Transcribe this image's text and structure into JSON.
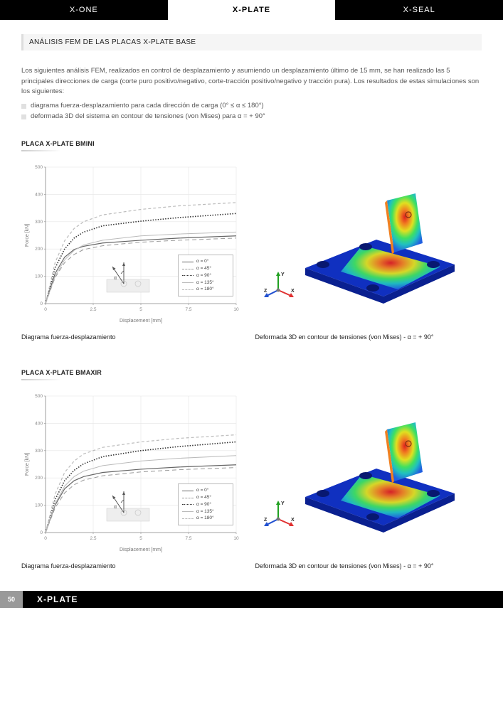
{
  "tabs": {
    "left": "X-ONE",
    "center": "X-PLATE",
    "right": "X-SEAL"
  },
  "section_title": "ANÁLISIS FEM DE LAS PLACAS X-PLATE BASE",
  "intro_p1": "Los siguientes análisis FEM, realizados en control de desplazamiento y asumiendo un desplazamiento último de 15 mm, se han realizado las 5 principales direcciones de carga (corte puro positivo/negativo, corte-tracción positivo/negativo y tracción pura). Los resultados de estas simulaciones son los siguientes:",
  "bullet1": "diagrama fuerza-desplazamiento para cada dirección de carga (0° ≤ α ≤ 180°)",
  "bullet2": "deformada 3D del sistema en contour de tensiones (von Mises) para α = + 90°",
  "block1": {
    "title": "PLACA X-PLATE BMINI",
    "chart": {
      "ylabel": "Force [kN]",
      "xlabel": "Displacement [mm]",
      "xticks": [
        0,
        2.5,
        5,
        7.5,
        10
      ],
      "yticks": [
        0,
        100,
        200,
        300,
        400,
        500
      ],
      "xlim": [
        0,
        10
      ],
      "ylim": [
        0,
        500
      ],
      "grid_color": "#e5e5e5",
      "series": [
        {
          "label": "α = 0°",
          "dash": "solid",
          "color": "#666",
          "width": 1.2,
          "points": [
            [
              0,
              0
            ],
            [
              0.5,
              110
            ],
            [
              1,
              170
            ],
            [
              1.5,
              198
            ],
            [
              2,
              210
            ],
            [
              3,
              222
            ],
            [
              5,
              232
            ],
            [
              7,
              240
            ],
            [
              10,
              248
            ]
          ]
        },
        {
          "label": "α = 45°",
          "dash": "long-dash",
          "color": "#999",
          "width": 1.0,
          "points": [
            [
              0,
              0
            ],
            [
              0.5,
              95
            ],
            [
              1,
              150
            ],
            [
              1.5,
              180
            ],
            [
              2,
              198
            ],
            [
              3,
              212
            ],
            [
              5,
              225
            ],
            [
              7,
              232
            ],
            [
              10,
              240
            ]
          ]
        },
        {
          "label": "α = 90°",
          "dash": "dotted",
          "color": "#333",
          "width": 1.6,
          "points": [
            [
              0,
              0
            ],
            [
              0.5,
              130
            ],
            [
              1,
              200
            ],
            [
              1.5,
              240
            ],
            [
              2,
              262
            ],
            [
              3,
              285
            ],
            [
              5,
              302
            ],
            [
              7,
              315
            ],
            [
              10,
              330
            ]
          ]
        },
        {
          "label": "α = 135°",
          "dash": "solid",
          "color": "#bbb",
          "width": 1.0,
          "points": [
            [
              0,
              0
            ],
            [
              0.5,
              100
            ],
            [
              1,
              160
            ],
            [
              1.5,
              195
            ],
            [
              2,
              215
            ],
            [
              3,
              232
            ],
            [
              5,
              248
            ],
            [
              7,
              255
            ],
            [
              10,
              262
            ]
          ]
        },
        {
          "label": "α = 180°",
          "dash": "short-dash",
          "color": "#bbb",
          "width": 1.2,
          "points": [
            [
              0,
              0
            ],
            [
              0.5,
              150
            ],
            [
              1,
              230
            ],
            [
              1.5,
              275
            ],
            [
              2,
              300
            ],
            [
              3,
              325
            ],
            [
              5,
              345
            ],
            [
              7,
              358
            ],
            [
              10,
              370
            ]
          ]
        }
      ],
      "inset_alpha": "α"
    },
    "caption_left": "Diagrama fuerza-desplazamiento",
    "caption_right": "Deformada 3D en contour de tensiones (von Mises) - α = + 90°",
    "axis3d": {
      "x": "X",
      "y": "Y",
      "z": "Z",
      "x_color": "#e03030",
      "y_color": "#20a020",
      "z_color": "#2050d0"
    },
    "fem_colors": {
      "base": "#1030c0",
      "base_light": "#2060e0",
      "warm1": "#20c0c0",
      "warm2": "#40e060",
      "warm3": "#e0e020",
      "warm4": "#f08020",
      "warm5": "#e02020"
    }
  },
  "block2": {
    "title": "PLACA X-PLATE BMAXIR",
    "chart": {
      "ylabel": "Force [kN]",
      "xlabel": "Displacement [mm]",
      "xticks": [
        0,
        2.5,
        5,
        7.5,
        10
      ],
      "yticks": [
        0,
        100,
        200,
        300,
        400,
        500
      ],
      "xlim": [
        0,
        10
      ],
      "ylim": [
        0,
        500
      ],
      "grid_color": "#e5e5e5",
      "series": [
        {
          "label": "α = 0°",
          "dash": "solid",
          "color": "#666",
          "width": 1.2,
          "points": [
            [
              0,
              0
            ],
            [
              0.5,
              100
            ],
            [
              1,
              160
            ],
            [
              1.5,
              190
            ],
            [
              2,
              205
            ],
            [
              3,
              220
            ],
            [
              5,
              232
            ],
            [
              7,
              240
            ],
            [
              10,
              248
            ]
          ]
        },
        {
          "label": "α = 45°",
          "dash": "long-dash",
          "color": "#999",
          "width": 1.0,
          "points": [
            [
              0,
              0
            ],
            [
              0.5,
              90
            ],
            [
              1,
              145
            ],
            [
              1.5,
              175
            ],
            [
              2,
              192
            ],
            [
              3,
              208
            ],
            [
              5,
              222
            ],
            [
              7,
              230
            ],
            [
              10,
              238
            ]
          ]
        },
        {
          "label": "α = 90°",
          "dash": "dotted",
          "color": "#333",
          "width": 1.6,
          "points": [
            [
              0,
              0
            ],
            [
              0.5,
              120
            ],
            [
              1,
              190
            ],
            [
              1.5,
              228
            ],
            [
              2,
              252
            ],
            [
              3,
              278
            ],
            [
              5,
              300
            ],
            [
              7,
              315
            ],
            [
              10,
              332
            ]
          ]
        },
        {
          "label": "α = 135°",
          "dash": "solid",
          "color": "#bbb",
          "width": 1.0,
          "points": [
            [
              0,
              0
            ],
            [
              0.5,
              105
            ],
            [
              1,
              170
            ],
            [
              1.5,
              205
            ],
            [
              2,
              225
            ],
            [
              3,
              245
            ],
            [
              5,
              262
            ],
            [
              7,
              272
            ],
            [
              10,
              282
            ]
          ]
        },
        {
          "label": "α = 180°",
          "dash": "short-dash",
          "color": "#bbb",
          "width": 1.2,
          "points": [
            [
              0,
              0
            ],
            [
              0.5,
              140
            ],
            [
              1,
              220
            ],
            [
              1.5,
              262
            ],
            [
              2,
              288
            ],
            [
              3,
              312
            ],
            [
              5,
              332
            ],
            [
              7,
              345
            ],
            [
              10,
              358
            ]
          ]
        }
      ],
      "inset_alpha": "α"
    },
    "caption_left": "Diagrama fuerza-desplazamiento",
    "caption_right": "Deformada 3D en contour de tensiones (von Mises) - α = + 90°",
    "axis3d": {
      "x": "X",
      "y": "Y",
      "z": "Z",
      "x_color": "#e03030",
      "y_color": "#20a020",
      "z_color": "#2050d0"
    },
    "fem_colors": {
      "base": "#1030c0",
      "base_light": "#2060e0",
      "warm1": "#20c0c0",
      "warm2": "#40e060",
      "warm3": "#e0e020",
      "warm4": "#f08020",
      "warm5": "#e02020"
    }
  },
  "footer": {
    "page": "50",
    "title": "X-PLATE"
  }
}
